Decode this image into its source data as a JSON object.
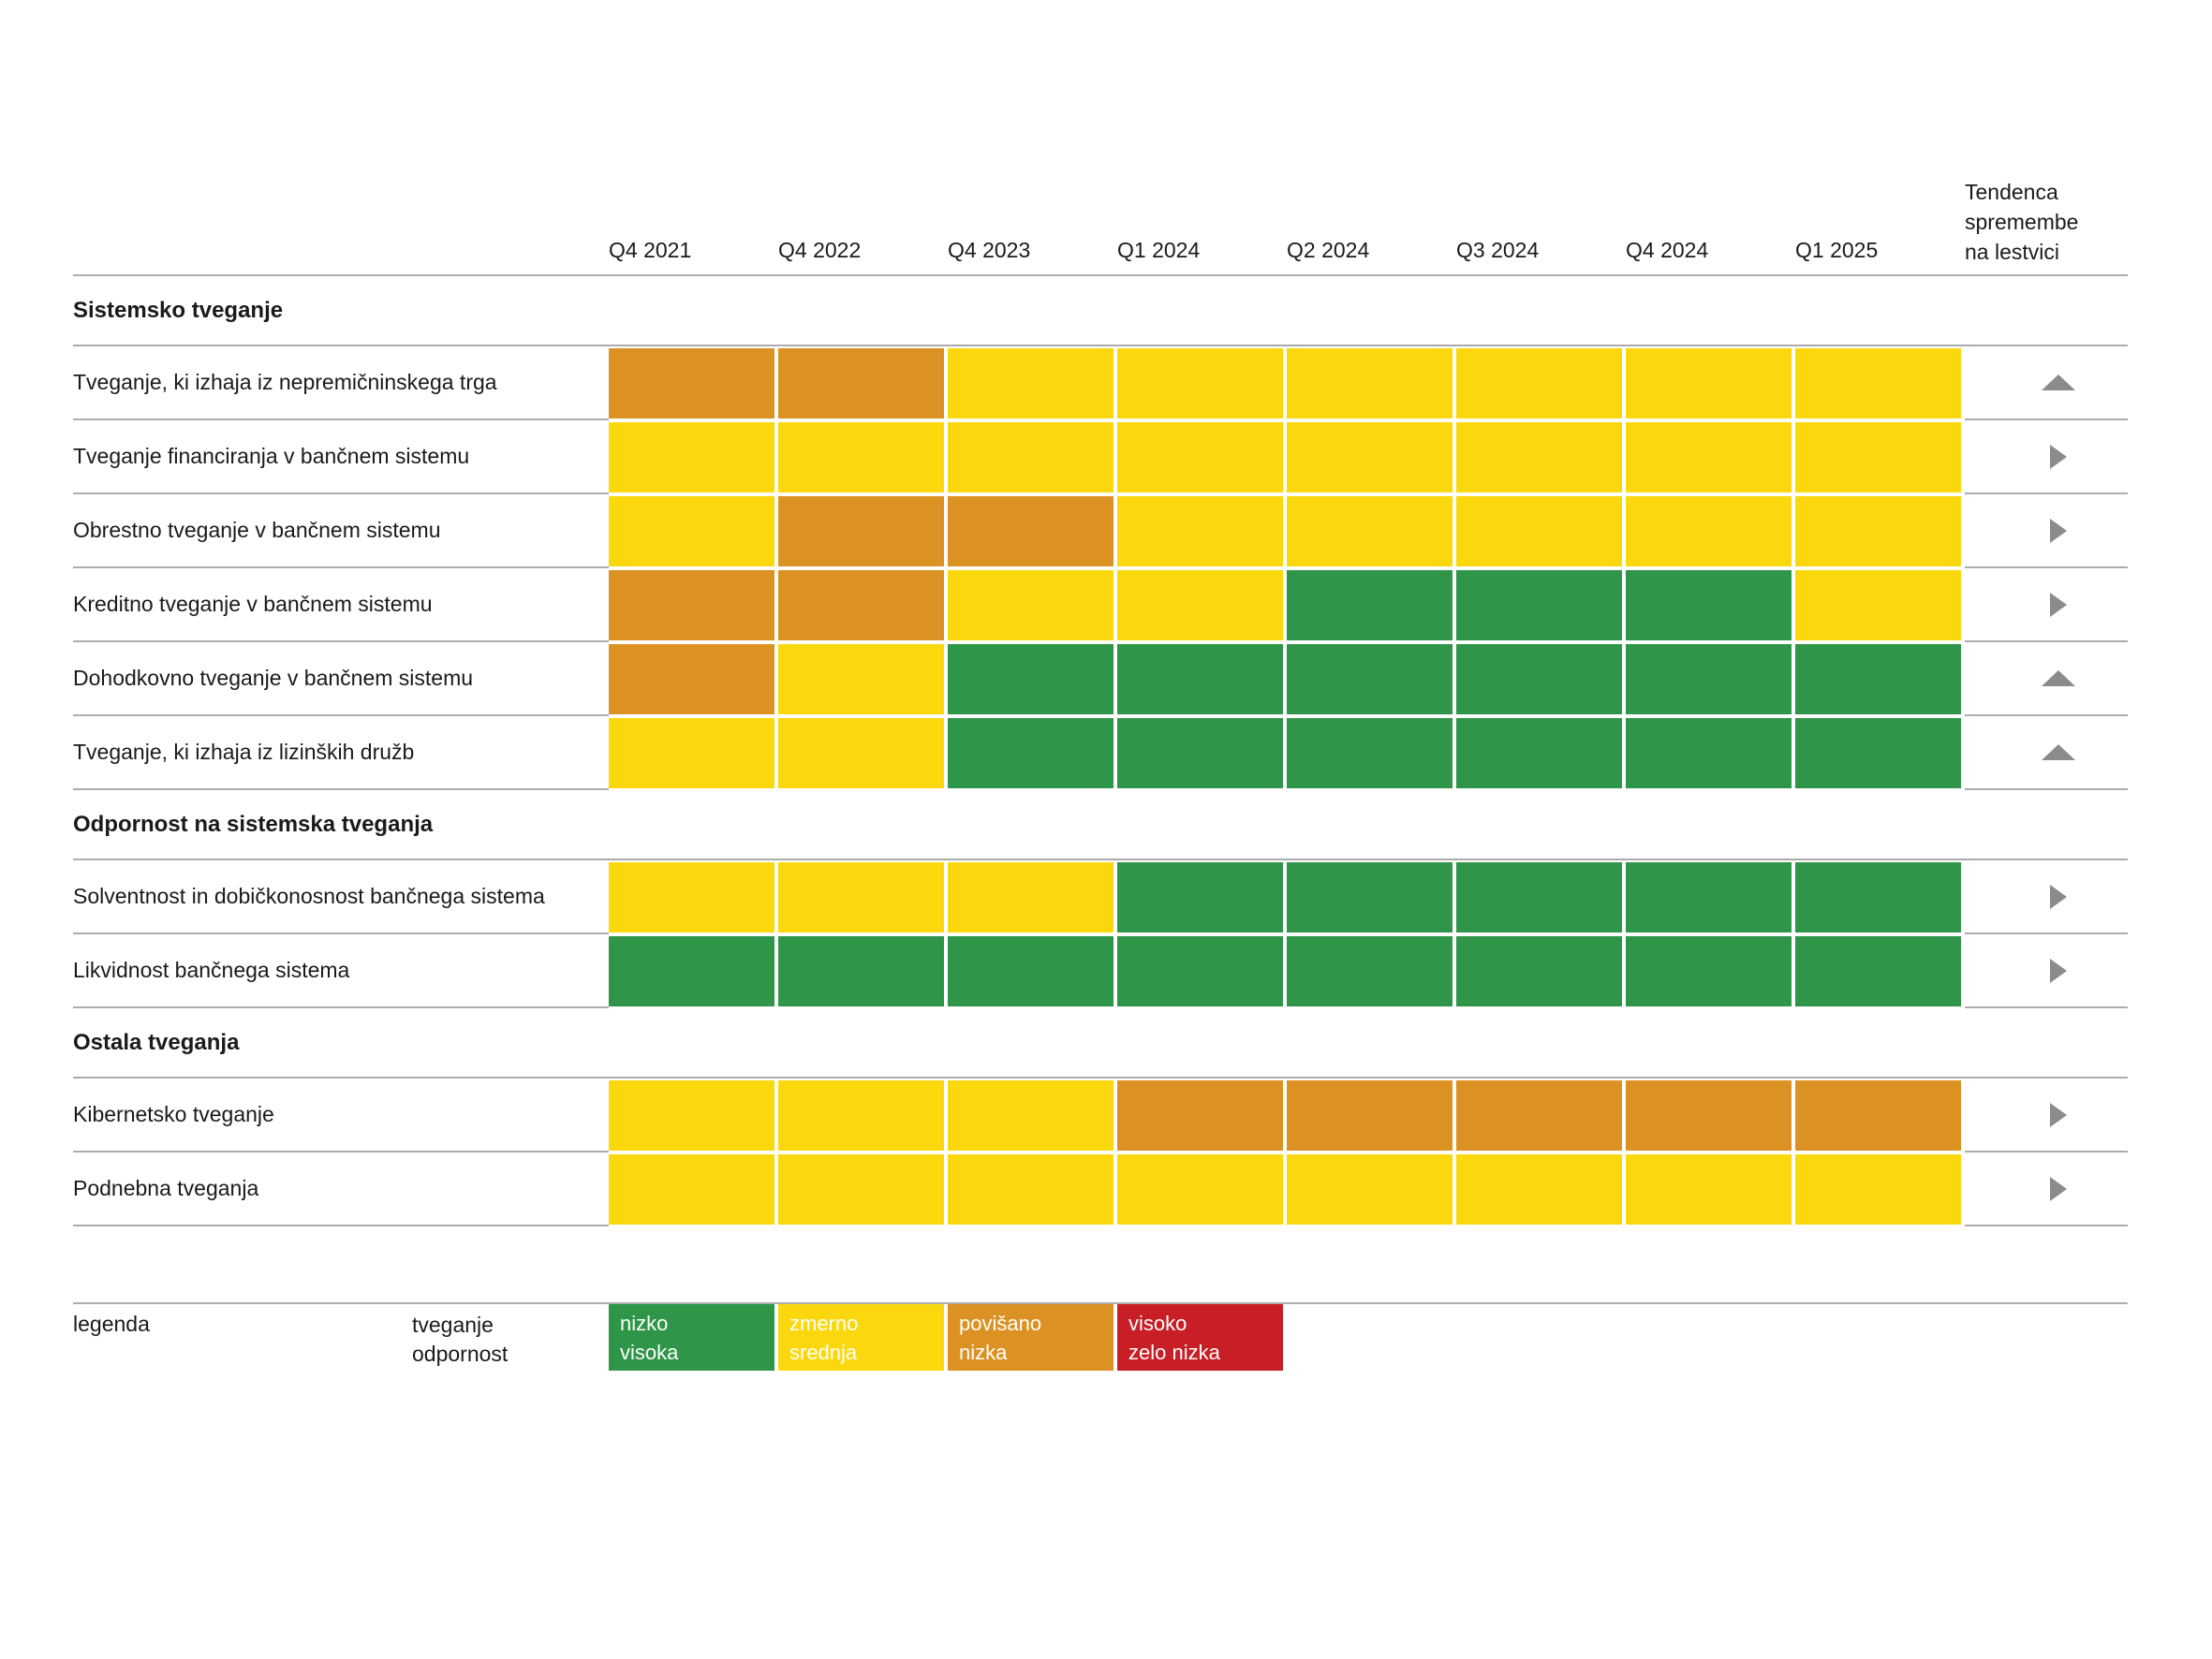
{
  "header": {
    "trend_header_lines": [
      "Tendenca",
      "spremembe",
      "na lestvici"
    ]
  },
  "legend": {
    "label": "legenda",
    "axis_lines": [
      "tveganje",
      "odpornost"
    ]
  },
  "colors": {
    "line": "#acacac",
    "arrow": "#8b8b8b",
    "text": "#1a1a1a",
    "background": "#ffffff"
  },
  "chart_data": {
    "type": "heatmap",
    "columns": [
      "Q4 2021",
      "Q4 2022",
      "Q4 2023",
      "Q1 2024",
      "Q2 2024",
      "Q3 2024",
      "Q4 2024",
      "Q1 2025"
    ],
    "trend_column_header": "Tendenca spremembe na lestvici",
    "levels": {
      "green": {
        "risk": "nizko",
        "resilience": "visoka",
        "color": "#2e9549"
      },
      "yellow": {
        "risk": "zmerno",
        "resilience": "srednja",
        "color": "#fbd80d"
      },
      "orange": {
        "risk": "povišano",
        "resilience": "nizka",
        "color": "#db9222"
      },
      "red": {
        "risk": "visoko",
        "resilience": "zelo nizka",
        "color": "#c81e25"
      }
    },
    "level_order": [
      "green",
      "yellow",
      "orange",
      "red"
    ],
    "sections": [
      {
        "title": "Sistemsko tveganje",
        "rows": [
          {
            "label": "Tveganje, ki izhaja iz nepremičninskega trga",
            "cells": [
              "orange",
              "orange",
              "yellow",
              "yellow",
              "yellow",
              "yellow",
              "yellow",
              "yellow"
            ],
            "trend": "up"
          },
          {
            "label": "Tveganje financiranja v bančnem sistemu",
            "cells": [
              "yellow",
              "yellow",
              "yellow",
              "yellow",
              "yellow",
              "yellow",
              "yellow",
              "yellow"
            ],
            "trend": "right"
          },
          {
            "label": "Obrestno tveganje v bančnem sistemu",
            "cells": [
              "yellow",
              "orange",
              "orange",
              "yellow",
              "yellow",
              "yellow",
              "yellow",
              "yellow"
            ],
            "trend": "right"
          },
          {
            "label": "Kreditno tveganje v bančnem sistemu",
            "cells": [
              "orange",
              "orange",
              "yellow",
              "yellow",
              "green",
              "green",
              "green",
              "yellow"
            ],
            "trend": "right"
          },
          {
            "label": "Dohodkovno tveganje v bančnem sistemu",
            "cells": [
              "orange",
              "yellow",
              "green",
              "green",
              "green",
              "green",
              "green",
              "green"
            ],
            "trend": "up"
          },
          {
            "label": "Tveganje, ki izhaja iz lizinških družb",
            "cells": [
              "yellow",
              "yellow",
              "green",
              "green",
              "green",
              "green",
              "green",
              "green"
            ],
            "trend": "up"
          }
        ]
      },
      {
        "title": "Odpornost na sistemska tveganja",
        "rows": [
          {
            "label": "Solventnost in dobičkonosnost bančnega sistema",
            "cells": [
              "yellow",
              "yellow",
              "yellow",
              "green",
              "green",
              "green",
              "green",
              "green"
            ],
            "trend": "right"
          },
          {
            "label": "Likvidnost bančnega sistema",
            "cells": [
              "green",
              "green",
              "green",
              "green",
              "green",
              "green",
              "green",
              "green"
            ],
            "trend": "right"
          }
        ]
      },
      {
        "title": "Ostala tveganja",
        "rows": [
          {
            "label": "Kibernetsko tveganje",
            "cells": [
              "yellow",
              "yellow",
              "yellow",
              "orange",
              "orange",
              "orange",
              "orange",
              "orange"
            ],
            "trend": "right"
          },
          {
            "label": "Podnebna tveganja",
            "cells": [
              "yellow",
              "yellow",
              "yellow",
              "yellow",
              "yellow",
              "yellow",
              "yellow",
              "yellow"
            ],
            "trend": "right"
          }
        ]
      }
    ]
  }
}
